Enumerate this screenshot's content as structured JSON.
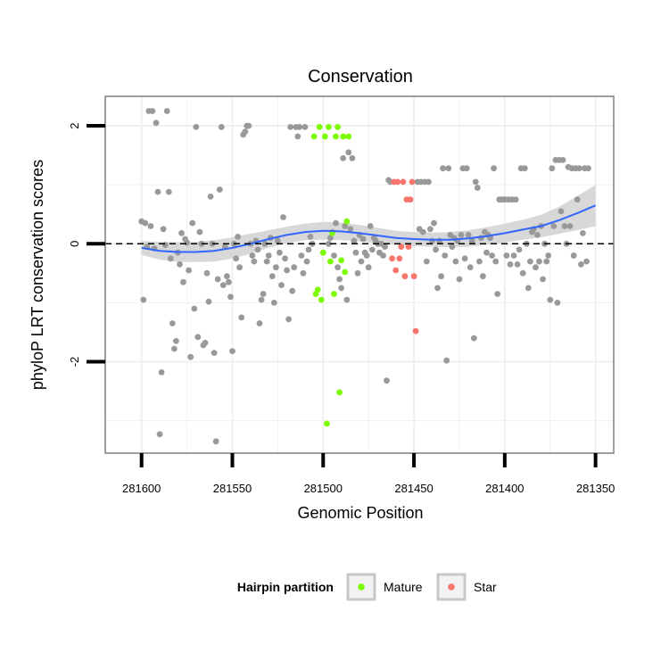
{
  "chart_data": {
    "type": "scatter",
    "title": "Conservation",
    "xlabel": "Genomic Position",
    "ylabel": "phyloP LRT conservation scores",
    "xlim": [
      281620,
      281340
    ],
    "ylim": [
      -3.55,
      2.5
    ],
    "x_ticks": [
      281600,
      281550,
      281500,
      281450,
      281400,
      281350
    ],
    "x_tick_labels": [
      "281600",
      "281550",
      "281500",
      "281450",
      "281400",
      "281350"
    ],
    "y_ticks": [
      -2,
      0,
      2
    ],
    "y_tick_labels": [
      "-2",
      "0",
      "2"
    ],
    "reference_line": {
      "y": 0,
      "style": "dashed"
    },
    "grid": true,
    "legend": {
      "title": "Hairpin partition",
      "position": "bottom",
      "entries": [
        {
          "label": "Mature",
          "color": "#7cfc00"
        },
        {
          "label": "Star",
          "color": "#f8766d"
        }
      ]
    },
    "colors": {
      "other": "#999999",
      "mature": "#7cfc00",
      "star": "#f8766d",
      "smooth": "#3366ff",
      "band": "#d9d9d9"
    },
    "series": [
      {
        "name": "Other",
        "points": [
          [
            281600,
            0.38
          ],
          [
            281599,
            -0.95
          ],
          [
            281598,
            0.35
          ],
          [
            281597,
            -0.05
          ],
          [
            281596,
            2.25
          ],
          [
            281595,
            0.3
          ],
          [
            281594,
            2.25
          ],
          [
            281593,
            -0.08
          ],
          [
            281592,
            2.05
          ],
          [
            281591,
            0.88
          ],
          [
            281590,
            -3.23
          ],
          [
            281589,
            -2.18
          ],
          [
            281588,
            0.25
          ],
          [
            281587,
            -0.02
          ],
          [
            281586,
            2.25
          ],
          [
            281585,
            0.88
          ],
          [
            281584,
            -0.25
          ],
          [
            281583,
            -1.35
          ],
          [
            281582,
            -1.78
          ],
          [
            281581,
            -1.65
          ],
          [
            281580,
            -0.15
          ],
          [
            281579,
            -0.35
          ],
          [
            281578,
            0.18
          ],
          [
            281577,
            -0.65
          ],
          [
            281576,
            0.08
          ],
          [
            281575,
            0.02
          ],
          [
            281574,
            -0.45
          ],
          [
            281573,
            -1.92
          ],
          [
            281572,
            0.35
          ],
          [
            281571,
            -1.1
          ],
          [
            281570,
            1.98
          ],
          [
            281569,
            -1.58
          ],
          [
            281568,
            0.2
          ],
          [
            281567,
            0.0
          ],
          [
            281566,
            -1.72
          ],
          [
            281565,
            -1.68
          ],
          [
            281564,
            -0.5
          ],
          [
            281563,
            -0.98
          ],
          [
            281562,
            0.8
          ],
          [
            281561,
            0.0
          ],
          [
            281560,
            -1.85
          ],
          [
            281559,
            -3.35
          ],
          [
            281558,
            -0.6
          ],
          [
            281557,
            0.92
          ],
          [
            281556,
            1.98
          ],
          [
            281555,
            -0.7
          ],
          [
            281554,
            -0.05
          ],
          [
            281553,
            -0.55
          ],
          [
            281552,
            -0.65
          ],
          [
            281551,
            -0.9
          ],
          [
            281550,
            -1.82
          ],
          [
            281549,
            0.0
          ],
          [
            281548,
            -0.25
          ],
          [
            281547,
            0.12
          ],
          [
            281546,
            -0.4
          ],
          [
            281545,
            -1.25
          ],
          [
            281544,
            1.85
          ],
          [
            281543,
            1.9
          ],
          [
            281542,
            2.0
          ],
          [
            281541,
            2.0
          ],
          [
            281540,
            0.0
          ],
          [
            281539,
            -0.2
          ],
          [
            281538,
            -0.3
          ],
          [
            281537,
            0.05
          ],
          [
            281536,
            -0.1
          ],
          [
            281535,
            -1.35
          ],
          [
            281534,
            -0.95
          ],
          [
            281533,
            -0.85
          ],
          [
            281532,
            0.0
          ],
          [
            281531,
            -0.3
          ],
          [
            281530,
            -0.2
          ],
          [
            281529,
            0.1
          ],
          [
            281528,
            -0.55
          ],
          [
            281527,
            -1.0
          ],
          [
            281526,
            -0.4
          ],
          [
            281525,
            0.05
          ],
          [
            281524,
            -0.15
          ],
          [
            281523,
            -0.7
          ],
          [
            281522,
            0.45
          ],
          [
            281521,
            -0.25
          ],
          [
            281520,
            -0.45
          ],
          [
            281519,
            -1.28
          ],
          [
            281518,
            1.98
          ],
          [
            281517,
            -0.8
          ],
          [
            281516,
            -0.4
          ],
          [
            281515,
            1.98
          ],
          [
            281514,
            1.82
          ],
          [
            281513,
            1.98
          ],
          [
            281512,
            -0.2
          ],
          [
            281511,
            -0.5
          ],
          [
            281510,
            1.98
          ],
          [
            281509,
            -0.3
          ],
          [
            281508,
            -0.1
          ],
          [
            281507,
            0.12
          ],
          [
            281506,
            0.0
          ],
          [
            281497,
            0.0
          ],
          [
            281496,
            0.1
          ],
          [
            281495,
            0.2
          ],
          [
            281494,
            -0.2
          ],
          [
            281493,
            0.35
          ],
          [
            281492,
            -0.4
          ],
          [
            281491,
            -0.6
          ],
          [
            281490,
            -0.75
          ],
          [
            281489,
            1.45
          ],
          [
            281488,
            0.3
          ],
          [
            281487,
            -0.95
          ],
          [
            281486,
            1.55
          ],
          [
            281485,
            0.25
          ],
          [
            281484,
            1.45
          ],
          [
            281483,
            0.05
          ],
          [
            281482,
            -0.15
          ],
          [
            281481,
            -0.5
          ],
          [
            281480,
            0.15
          ],
          [
            281479,
            -0.3
          ],
          [
            281478,
            0.08
          ],
          [
            281477,
            -0.15
          ],
          [
            281476,
            -0.2
          ],
          [
            281475,
            -0.4
          ],
          [
            281474,
            0.3
          ],
          [
            281473,
            -0.1
          ],
          [
            281472,
            0.1
          ],
          [
            281471,
            0.05
          ],
          [
            281470,
            0.0
          ],
          [
            281469,
            -0.15
          ],
          [
            281468,
            0.0
          ],
          [
            281467,
            -0.2
          ],
          [
            281466,
            -0.05
          ],
          [
            281465,
            -2.32
          ],
          [
            281464,
            1.08
          ],
          [
            281463,
            1.05
          ],
          [
            281448,
            1.05
          ],
          [
            281447,
            0.25
          ],
          [
            281446,
            1.05
          ],
          [
            281445,
            0.2
          ],
          [
            281444,
            1.05
          ],
          [
            281443,
            -0.3
          ],
          [
            281442,
            1.05
          ],
          [
            281441,
            0.25
          ],
          [
            281440,
            0.05
          ],
          [
            281439,
            0.35
          ],
          [
            281438,
            -0.1
          ],
          [
            281437,
            -0.75
          ],
          [
            281436,
            0.05
          ],
          [
            281435,
            -0.55
          ],
          [
            281434,
            1.28
          ],
          [
            281433,
            -0.2
          ],
          [
            281432,
            -1.98
          ],
          [
            281431,
            1.28
          ],
          [
            281430,
            0.15
          ],
          [
            281429,
            -0.05
          ],
          [
            281428,
            0.1
          ],
          [
            281427,
            -0.3
          ],
          [
            281426,
            0.05
          ],
          [
            281425,
            -0.6
          ],
          [
            281424,
            0.15
          ],
          [
            281423,
            1.28
          ],
          [
            281422,
            -0.25
          ],
          [
            281421,
            1.28
          ],
          [
            281420,
            0.15
          ],
          [
            281419,
            -0.4
          ],
          [
            281418,
            0.05
          ],
          [
            281417,
            -1.6
          ],
          [
            281416,
            1.05
          ],
          [
            281415,
            0.95
          ],
          [
            281414,
            -0.3
          ],
          [
            281413,
            0.1
          ],
          [
            281412,
            -0.55
          ],
          [
            281411,
            0.2
          ],
          [
            281410,
            -0.15
          ],
          [
            281409,
            0.15
          ],
          [
            281408,
            0.1
          ],
          [
            281407,
            -0.2
          ],
          [
            281406,
            1.28
          ],
          [
            281405,
            -0.3
          ],
          [
            281404,
            -0.85
          ],
          [
            281403,
            0.75
          ],
          [
            281402,
            0.75
          ],
          [
            281401,
            0.75
          ],
          [
            281400,
            0.75
          ],
          [
            281399,
            -0.2
          ],
          [
            281398,
            0.75
          ],
          [
            281397,
            -0.35
          ],
          [
            281396,
            0.75
          ],
          [
            281395,
            -0.2
          ],
          [
            281394,
            0.75
          ],
          [
            281393,
            -0.35
          ],
          [
            281392,
            -0.1
          ],
          [
            281391,
            1.28
          ],
          [
            281390,
            -0.5
          ],
          [
            281389,
            1.28
          ],
          [
            281388,
            0.0
          ],
          [
            281387,
            -0.75
          ],
          [
            281386,
            -0.3
          ],
          [
            281385,
            0.2
          ],
          [
            281384,
            0.25
          ],
          [
            281383,
            -0.4
          ],
          [
            281382,
            0.15
          ],
          [
            281381,
            -0.3
          ],
          [
            281380,
            0.3
          ],
          [
            281379,
            -0.6
          ],
          [
            281378,
            0.0
          ],
          [
            281377,
            -0.3
          ],
          [
            281376,
            -0.2
          ],
          [
            281375,
            -0.95
          ],
          [
            281374,
            1.28
          ],
          [
            281373,
            0.3
          ],
          [
            281372,
            1.42
          ],
          [
            281371,
            -1.0
          ],
          [
            281370,
            1.42
          ],
          [
            281369,
            0.55
          ],
          [
            281368,
            1.42
          ],
          [
            281367,
            0.3
          ],
          [
            281366,
            0.0
          ],
          [
            281365,
            1.3
          ],
          [
            281364,
            0.3
          ],
          [
            281363,
            1.28
          ],
          [
            281362,
            -0.2
          ],
          [
            281361,
            1.28
          ],
          [
            281360,
            0.75
          ],
          [
            281359,
            1.28
          ],
          [
            281358,
            -0.35
          ],
          [
            281357,
            0.18
          ],
          [
            281356,
            1.28
          ],
          [
            281355,
            -0.3
          ],
          [
            281354,
            1.28
          ]
        ]
      },
      {
        "name": "Mature",
        "points": [
          [
            281505,
            1.82
          ],
          [
            281504,
            -0.85
          ],
          [
            281503,
            -0.78
          ],
          [
            281502,
            1.98
          ],
          [
            281501,
            -0.95
          ],
          [
            281500,
            -0.15
          ],
          [
            281499,
            1.82
          ],
          [
            281498,
            -3.05
          ],
          [
            281497,
            1.98
          ],
          [
            281496,
            -0.3
          ],
          [
            281495,
            0.18
          ],
          [
            281494,
            -0.85
          ],
          [
            281493,
            1.82
          ],
          [
            281492,
            1.98
          ],
          [
            281491,
            -2.52
          ],
          [
            281490,
            -0.28
          ],
          [
            281489,
            1.82
          ],
          [
            281488,
            -0.48
          ],
          [
            281487,
            0.38
          ],
          [
            281486,
            1.82
          ]
        ]
      },
      {
        "name": "Star",
        "points": [
          [
            281462,
            -0.25
          ],
          [
            281461,
            1.05
          ],
          [
            281460,
            -0.45
          ],
          [
            281459,
            1.05
          ],
          [
            281458,
            -0.25
          ],
          [
            281457,
            -0.05
          ],
          [
            281456,
            1.05
          ],
          [
            281455,
            -0.55
          ],
          [
            281454,
            0.75
          ],
          [
            281453,
            -0.05
          ],
          [
            281452,
            0.75
          ],
          [
            281451,
            1.05
          ],
          [
            281450,
            -0.55
          ],
          [
            281449,
            -1.48
          ]
        ]
      }
    ],
    "smooth_curve": {
      "x": [
        281600,
        281590,
        281580,
        281570,
        281560,
        281550,
        281540,
        281530,
        281520,
        281510,
        281500,
        281490,
        281480,
        281470,
        281460,
        281450,
        281440,
        281430,
        281420,
        281410,
        281400,
        281390,
        281380,
        281370,
        281360,
        281350
      ],
      "y": [
        -0.07,
        -0.12,
        -0.14,
        -0.14,
        -0.12,
        -0.07,
        0.0,
        0.08,
        0.15,
        0.2,
        0.22,
        0.21,
        0.18,
        0.14,
        0.1,
        0.08,
        0.07,
        0.07,
        0.09,
        0.13,
        0.18,
        0.24,
        0.3,
        0.4,
        0.52,
        0.65
      ],
      "band": [
        0.12,
        0.15,
        0.17,
        0.17,
        0.18,
        0.18,
        0.17,
        0.15,
        0.14,
        0.14,
        0.15,
        0.15,
        0.14,
        0.13,
        0.12,
        0.12,
        0.12,
        0.13,
        0.14,
        0.15,
        0.16,
        0.17,
        0.19,
        0.23,
        0.29,
        0.35
      ]
    }
  }
}
